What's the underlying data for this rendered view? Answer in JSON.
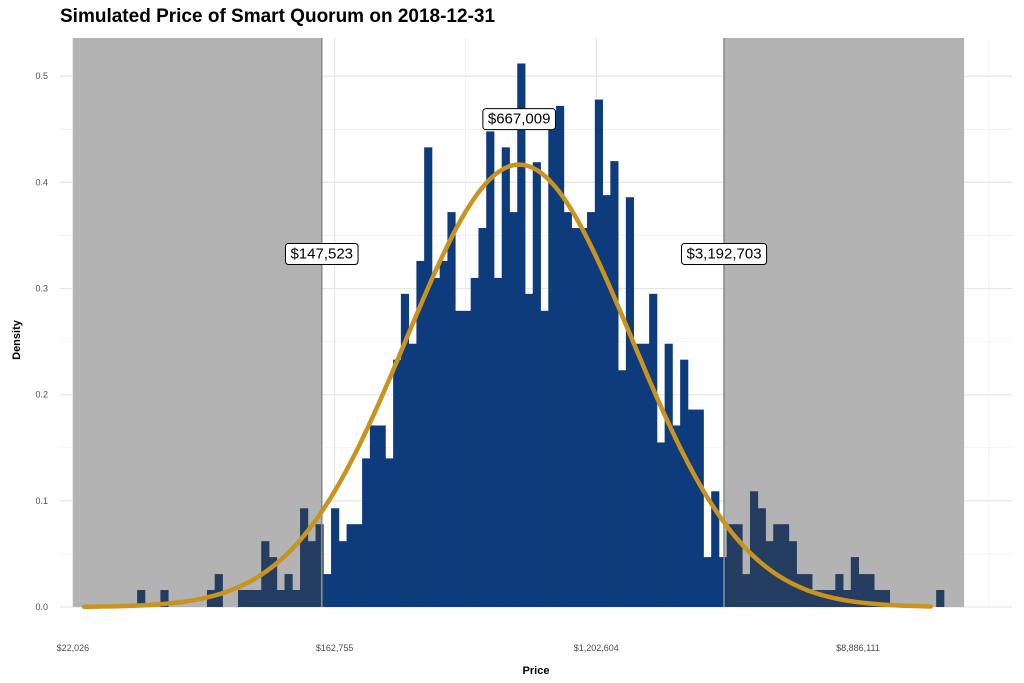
{
  "chart_data": {
    "type": "histogram",
    "title": "Simulated Price of Smart Quorum on 2018-12-31",
    "xlabel": "Price",
    "ylabel": "Density",
    "x_scale": "log10",
    "x_ticks": [
      {
        "value": 22026,
        "label": "$22,026"
      },
      {
        "value": 162755,
        "label": "$162,755"
      },
      {
        "value": 1202604,
        "label": "$1,202,604"
      },
      {
        "value": 8886111,
        "label": "$8,886,111"
      }
    ],
    "y_ticks": [
      {
        "value": 0.0,
        "label": "0.0"
      },
      {
        "value": 0.1,
        "label": "0.1"
      },
      {
        "value": 0.2,
        "label": "0.2"
      },
      {
        "value": 0.3,
        "label": "0.3"
      },
      {
        "value": 0.4,
        "label": "0.4"
      },
      {
        "value": 0.5,
        "label": "0.5"
      }
    ],
    "ylim": [
      0,
      0.5
    ],
    "grid": true,
    "shaded_regions": [
      {
        "from": 22026,
        "to": 147523
      },
      {
        "from": 3192703,
        "to": 20000000
      }
    ],
    "annotations": [
      {
        "x": 147523,
        "y": 0.333,
        "label": "$147,523"
      },
      {
        "x": 667009,
        "y": 0.46,
        "label": "$667,009"
      },
      {
        "x": 3192703,
        "y": 0.333,
        "label": "$3,192,703"
      }
    ],
    "bins": {
      "log10_start": 4.556,
      "log10_width": 0.02575,
      "densities": [
        0.016,
        0.0,
        0.0,
        0.016,
        0.0,
        0.0,
        0.0,
        0.0,
        0.0,
        0.016,
        0.031,
        0.0,
        0.0,
        0.016,
        0.016,
        0.016,
        0.062,
        0.047,
        0.016,
        0.031,
        0.016,
        0.093,
        0.062,
        0.078,
        0.031,
        0.093,
        0.062,
        0.078,
        0.078,
        0.14,
        0.171,
        0.171,
        0.14,
        0.233,
        0.295,
        0.248,
        0.326,
        0.433,
        0.31,
        0.326,
        0.372,
        0.279,
        0.279,
        0.31,
        0.357,
        0.448,
        0.31,
        0.433,
        0.372,
        0.512,
        0.295,
        0.419,
        0.279,
        0.457,
        0.472,
        0.372,
        0.357,
        0.357,
        0.372,
        0.478,
        0.388,
        0.42,
        0.223,
        0.386,
        0.248,
        0.248,
        0.295,
        0.155,
        0.248,
        0.171,
        0.233,
        0.186,
        0.186,
        0.047,
        0.109,
        0.047,
        0.078,
        0.078,
        0.031,
        0.109,
        0.093,
        0.062,
        0.078,
        0.078,
        0.062,
        0.031,
        0.031,
        0.016,
        0.016,
        0.016,
        0.031,
        0.016,
        0.047,
        0.031,
        0.031,
        0.016,
        0.016,
        0.0,
        0.0,
        0.0,
        0.0,
        0.0,
        0.0,
        0.016
      ]
    },
    "density_curve": {
      "type": "normal",
      "log10_mean": 5.824,
      "log10_sd": 0.374,
      "x_range": [
        24000,
        15500000
      ]
    },
    "colors": {
      "bars": "#0e3b7b",
      "bars_in_shade": "#253d61",
      "curve": "#c9931f",
      "shade": "#b3b3b3",
      "grid": "#e6e6e6"
    }
  }
}
